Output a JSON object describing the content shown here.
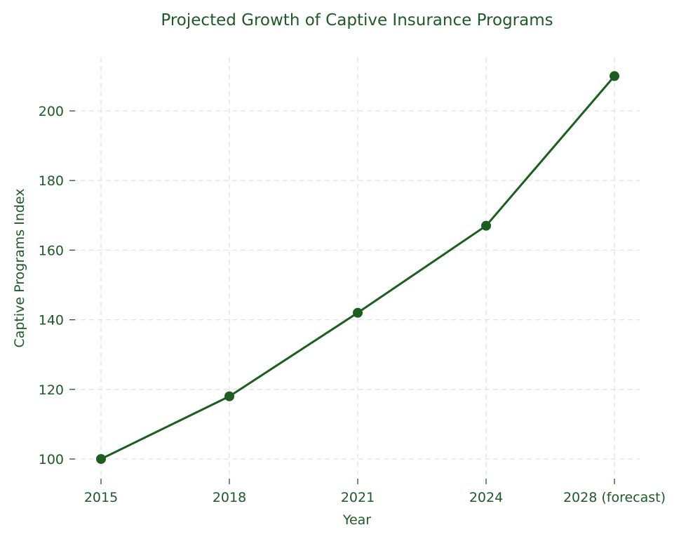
{
  "chart_data": {
    "type": "line",
    "title": "Projected Growth of Captive Insurance Programs",
    "xlabel": "Year",
    "ylabel": "Captive Programs Index",
    "categories": [
      "2015",
      "2018",
      "2021",
      "2024",
      "2028 (forecast)"
    ],
    "series": [
      {
        "name": "Captive Programs Index",
        "values": [
          100,
          118,
          142,
          167,
          210
        ],
        "color": "#1b5e20",
        "marker": "circle"
      }
    ],
    "ylim": [
      95,
      215
    ],
    "yticks": [
      100,
      120,
      140,
      160,
      180,
      200
    ],
    "ytick_labels": [
      "100",
      "120",
      "140",
      "160",
      "180",
      "200"
    ],
    "grid": true,
    "grid_style": "dashed",
    "legend": "none",
    "text_color": "#1e5a28"
  }
}
